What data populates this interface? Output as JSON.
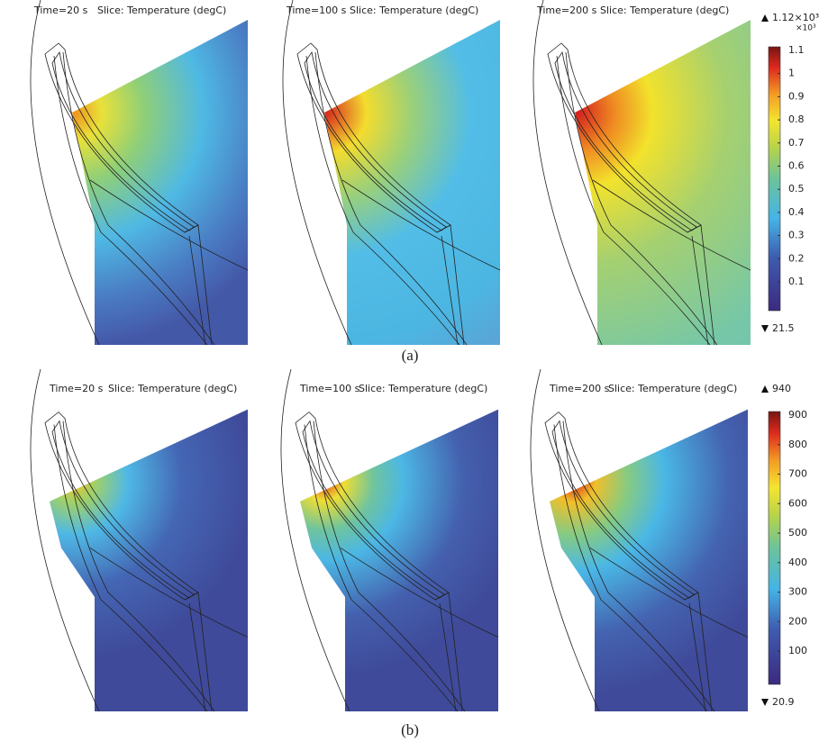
{
  "rows": [
    {
      "panels": [
        {
          "time": "Time=20 s",
          "slice": "Slice: Temperature (degC)"
        },
        {
          "time": "Time=100 s",
          "slice": "Slice: Temperature (degC)"
        },
        {
          "time": "Time=200 s",
          "slice": "Slice: Temperature (degC)"
        }
      ],
      "colorbar": {
        "max": "1.12×10³",
        "multiplier": "×10³",
        "min": "21.5",
        "ticks": [
          "1.1",
          "1",
          "0.9",
          "0.8",
          "0.7",
          "0.6",
          "0.5",
          "0.4",
          "0.3",
          "0.2",
          "0.1"
        ]
      },
      "caption": "(a)"
    },
    {
      "panels": [
        {
          "time": "Time=20 s",
          "slice": "Slice: Temperature (degC)"
        },
        {
          "time": "Time=100 s",
          "slice": "Slice: Temperature (degC)"
        },
        {
          "time": "Time=200 s",
          "slice": "Slice: Temperature (degC)"
        }
      ],
      "colorbar": {
        "max": "940",
        "min": "20.9",
        "ticks": [
          "900",
          "800",
          "700",
          "600",
          "500",
          "400",
          "300",
          "200",
          "100"
        ]
      },
      "caption": "(b)"
    }
  ]
}
